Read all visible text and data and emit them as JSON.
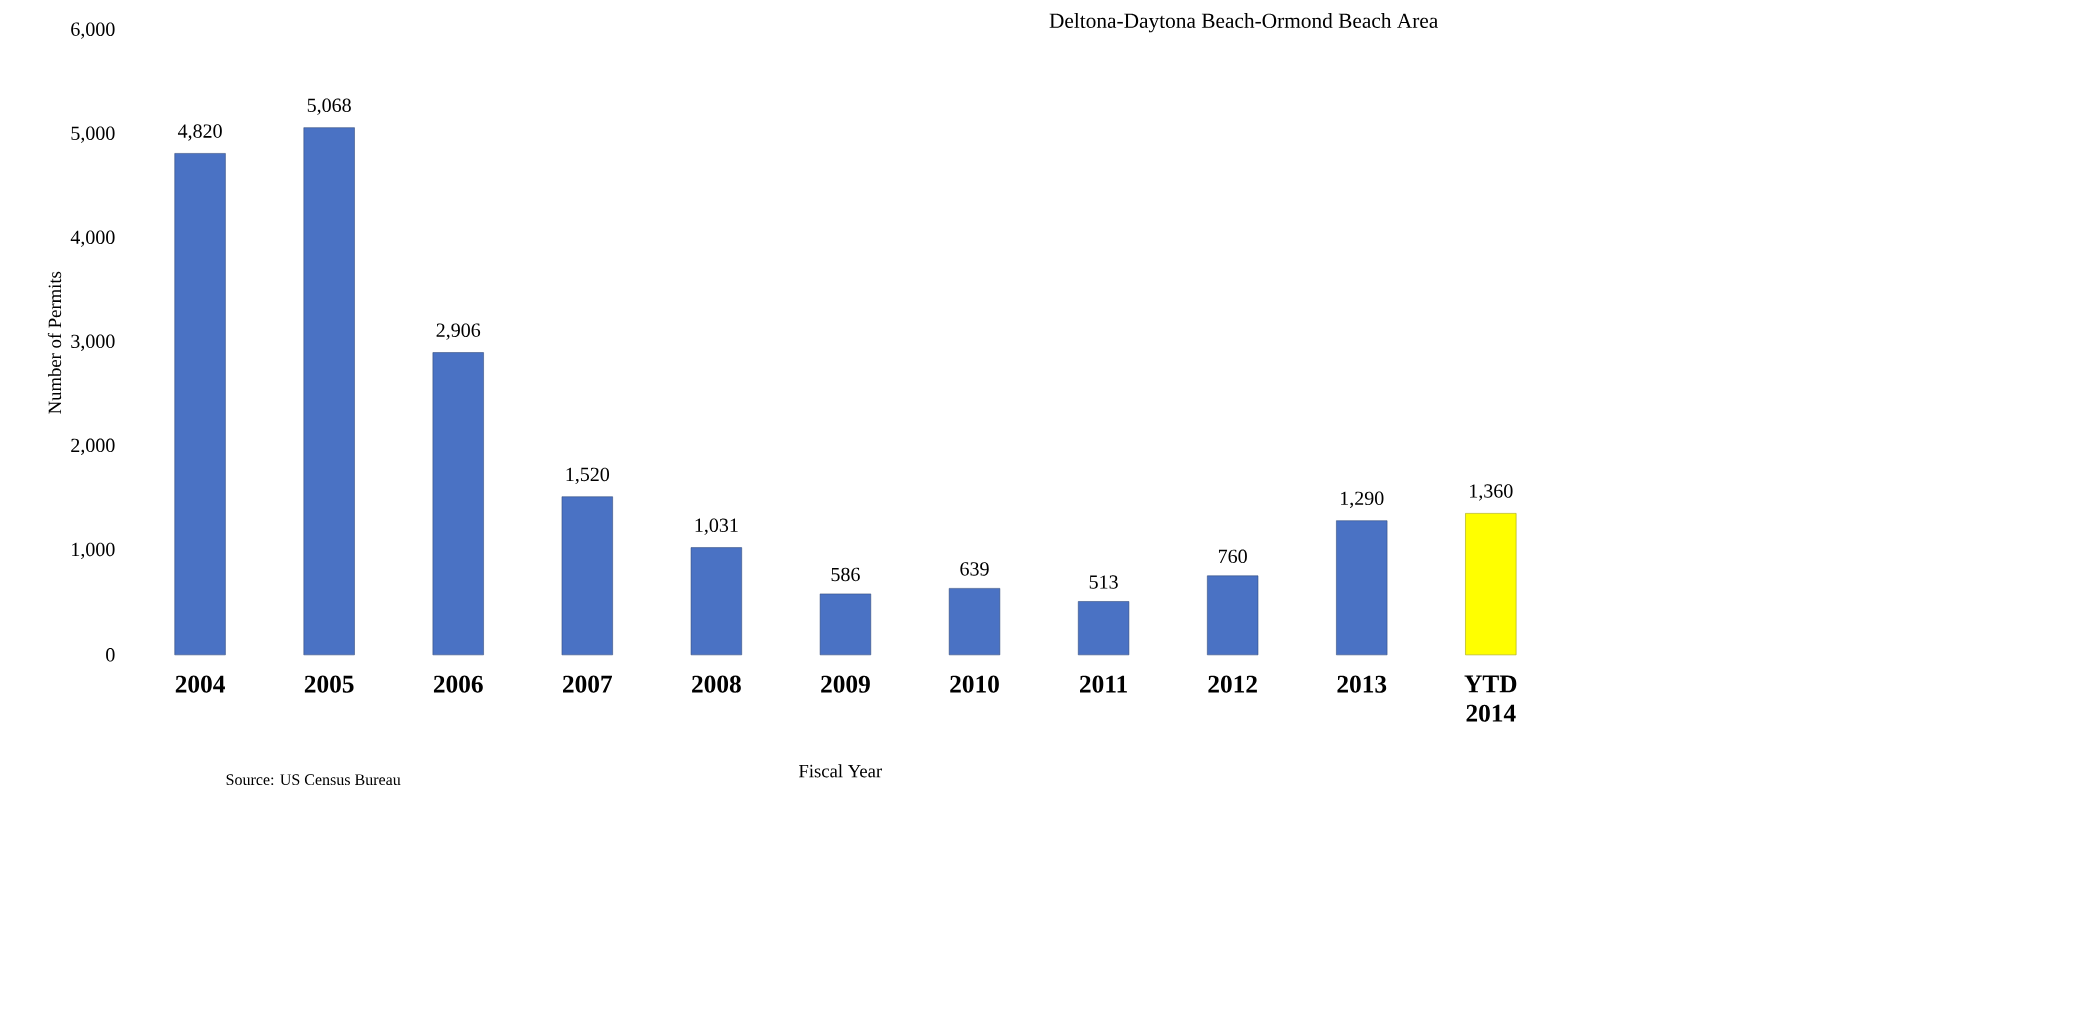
{
  "chart_data": {
    "type": "bar",
    "title": "Deltona-Daytona Beach-Ormond Beach Area",
    "xlabel": "Fiscal Year",
    "ylabel": "Number of Permits",
    "annotations": [
      "Source:  US Census Bureau"
    ],
    "categories": [
      "2004",
      "2005",
      "2006",
      "2007",
      "2008",
      "2009",
      "2010",
      "2011",
      "2012",
      "2013",
      "YTD 2014"
    ],
    "values": [
      4820,
      5068,
      2906,
      1520,
      1031,
      586,
      639,
      513,
      760,
      1290,
      1360
    ],
    "colors": [
      "#4a72c4",
      "#4a72c4",
      "#4a72c4",
      "#4a72c4",
      "#4a72c4",
      "#4a72c4",
      "#4a72c4",
      "#4a72c4",
      "#4a72c4",
      "#4a72c4",
      "#ffff00"
    ],
    "value_labels": [
      "4,820",
      "5,068",
      "2,906",
      "1,520",
      "1,031",
      "586",
      "639",
      "513",
      "760",
      "1,290",
      "1,360"
    ],
    "ylim": [
      0,
      6000
    ],
    "yticks": [
      0,
      {
        "value": 1000,
        "label": "1,000"
      },
      {
        "value": 2000,
        "label": "2,000"
      },
      {
        "value": 3000,
        "label": "3,000"
      },
      {
        "value": 4000,
        "label": "4,000"
      },
      {
        "value": 5000,
        "label": "5,000"
      },
      {
        "value": 6000,
        "label": "6,000"
      }
    ],
    "grid": false
  }
}
